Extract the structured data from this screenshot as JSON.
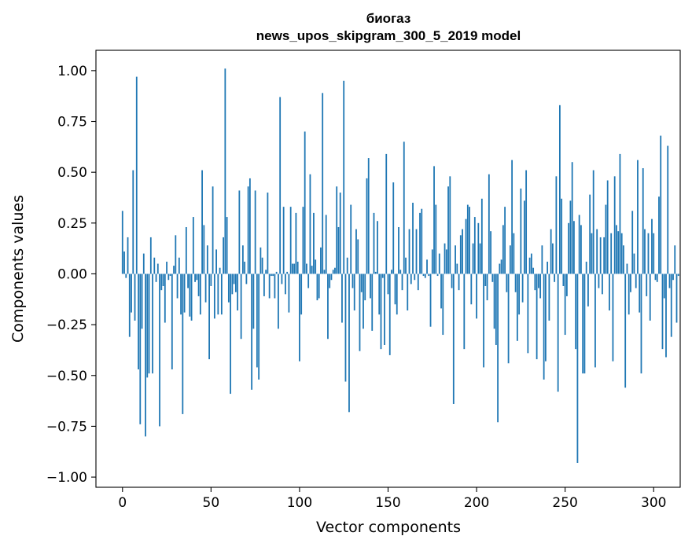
{
  "chart_data": {
    "type": "bar",
    "title": "биогаз",
    "subtitle": "news_upos_skipgram_300_5_2019 model",
    "xlabel": "Vector components",
    "ylabel": "Components values",
    "xlim": [
      -15,
      315
    ],
    "ylim": [
      -1.05,
      1.1
    ],
    "xticks": [
      0,
      50,
      100,
      150,
      200,
      250,
      300
    ],
    "yticks": [
      -1.0,
      -0.75,
      -0.5,
      -0.25,
      0.0,
      0.25,
      0.5,
      0.75,
      1.0
    ],
    "ytick_labels": [
      "−1.00",
      "−0.75",
      "−0.50",
      "−0.25",
      "0.00",
      "0.25",
      "0.50",
      "0.75",
      "1.00"
    ],
    "xtick_labels": [
      "0",
      "50",
      "100",
      "150",
      "200",
      "250",
      "300"
    ],
    "bar_color": "#1f77b4",
    "values": [
      0.31,
      0.11,
      -0.02,
      0.18,
      -0.31,
      -0.19,
      0.51,
      -0.23,
      0.97,
      -0.47,
      -0.74,
      -0.27,
      0.1,
      -0.8,
      -0.51,
      -0.49,
      0.18,
      -0.49,
      0.08,
      -0.04,
      0.05,
      -0.75,
      -0.08,
      -0.06,
      -0.24,
      0.06,
      -0.03,
      -0.01,
      -0.47,
      0.04,
      0.19,
      -0.12,
      0.08,
      -0.2,
      -0.69,
      -0.19,
      0.23,
      -0.07,
      -0.21,
      -0.23,
      0.28,
      -0.04,
      -0.03,
      -0.11,
      -0.2,
      0.51,
      0.24,
      -0.14,
      0.14,
      -0.42,
      -0.06,
      0.43,
      -0.22,
      0.12,
      -0.2,
      0.03,
      -0.2,
      0.18,
      1.01,
      0.28,
      -0.14,
      -0.59,
      -0.1,
      -0.05,
      -0.09,
      -0.18,
      0.41,
      -0.32,
      0.14,
      0.06,
      -0.05,
      0.43,
      0.47,
      -0.57,
      -0.27,
      0.41,
      -0.46,
      -0.52,
      0.13,
      0.08,
      -0.11,
      0.02,
      0.4,
      -0.12,
      -0.01,
      -0.01,
      -0.12,
      0.01,
      -0.27,
      0.87,
      -0.05,
      0.33,
      -0.1,
      0.01,
      -0.19,
      0.33,
      0.05,
      0.05,
      0.3,
      0.06,
      -0.43,
      -0.2,
      0.33,
      0.7,
      0.05,
      -0.07,
      0.49,
      0.04,
      0.3,
      0.07,
      -0.13,
      -0.12,
      0.13,
      0.89,
      0.02,
      0.29,
      -0.32,
      -0.07,
      -0.03,
      0.02,
      0.03,
      0.43,
      0.23,
      0.4,
      -0.24,
      0.95,
      -0.53,
      0.08,
      -0.68,
      0.34,
      -0.07,
      -0.18,
      0.22,
      0.17,
      -0.38,
      -0.09,
      -0.27,
      -0.13,
      0.47,
      0.57,
      -0.12,
      -0.28,
      0.3,
      0.01,
      0.26,
      -0.2,
      -0.37,
      -0.02,
      -0.35,
      0.59,
      -0.1,
      -0.4,
      0.02,
      0.45,
      -0.15,
      -0.2,
      0.23,
      0.02,
      -0.08,
      0.65,
      0.08,
      -0.18,
      0.22,
      -0.05,
      0.35,
      -0.03,
      0.22,
      -0.08,
      0.3,
      0.32,
      -0.01,
      -0.02,
      0.07,
      -0.01,
      -0.26,
      0.12,
      0.53,
      0.34,
      -0.01,
      0.1,
      -0.17,
      -0.3,
      0.15,
      0.12,
      0.43,
      0.48,
      -0.07,
      -0.64,
      0.14,
      0.05,
      -0.08,
      0.19,
      0.22,
      -0.37,
      0.27,
      0.34,
      0.33,
      -0.15,
      0.15,
      0.28,
      -0.22,
      0.25,
      0.15,
      0.37,
      -0.46,
      -0.06,
      -0.13,
      0.49,
      0.21,
      -0.04,
      -0.27,
      -0.35,
      -0.73,
      0.05,
      0.07,
      0.24,
      0.33,
      -0.09,
      -0.44,
      0.14,
      0.56,
      0.2,
      -0.09,
      -0.33,
      -0.2,
      0.42,
      -0.14,
      0.36,
      0.51,
      -0.39,
      0.08,
      0.1,
      0.03,
      -0.08,
      -0.42,
      -0.07,
      -0.12,
      0.14,
      -0.52,
      -0.43,
      0.06,
      -0.23,
      0.22,
      0.15,
      -0.04,
      0.48,
      -0.58,
      0.83,
      0.37,
      -0.06,
      -0.3,
      -0.11,
      0.25,
      0.36,
      0.55,
      0.26,
      -0.37,
      -0.93,
      0.29,
      0.24,
      -0.49,
      -0.49,
      0.06,
      -0.16,
      0.39,
      0.2,
      0.51,
      -0.46,
      0.22,
      -0.07,
      0.18,
      -0.1,
      0.18,
      0.34,
      0.46,
      -0.18,
      0.2,
      -0.43,
      0.48,
      0.24,
      0.21,
      0.59,
      0.2,
      0.14,
      -0.56,
      0.05,
      -0.2,
      -0.09,
      0.31,
      0.1,
      -0.07,
      0.56,
      -0.19,
      -0.49,
      0.52,
      0.22,
      -0.11,
      0.2,
      -0.23,
      0.27,
      0.2,
      -0.03,
      -0.04,
      0.38,
      0.68,
      -0.37,
      -0.12,
      -0.41,
      0.63,
      -0.07,
      -0.31,
      -0.03,
      0.14,
      -0.24,
      -0.01
    ]
  }
}
